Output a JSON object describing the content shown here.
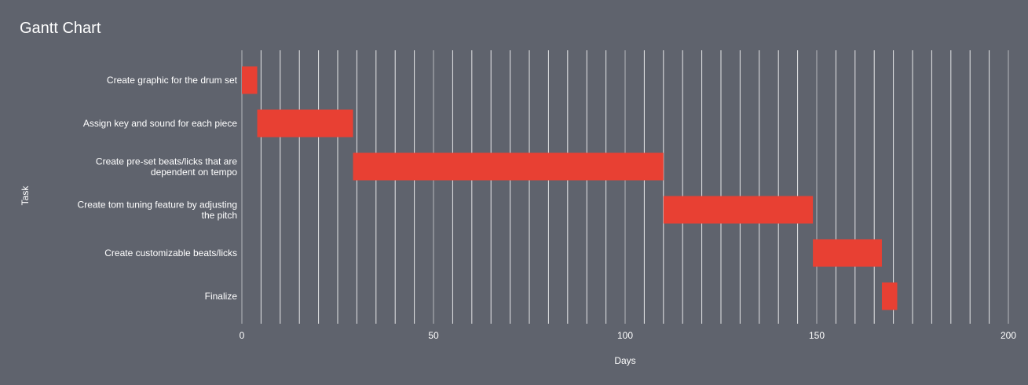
{
  "chart_data": {
    "type": "gantt",
    "title": "Gantt Chart",
    "xlabel": "Days",
    "ylabel": "Task",
    "xlim": [
      0,
      200
    ],
    "x_ticks": [
      0,
      50,
      100,
      150,
      200
    ],
    "minor_grid_step": 5,
    "grid": true,
    "bar_color": "#e84033",
    "background_color": "#5f636d",
    "tasks": [
      {
        "label": "Create graphic for the drum set",
        "start": 0,
        "end": 4
      },
      {
        "label": "Assign key and sound for each piece",
        "start": 4,
        "end": 29
      },
      {
        "label": "Create pre-set beats/licks that are dependent on tempo",
        "start": 29,
        "end": 110
      },
      {
        "label": "Create tom tuning feature by adjusting the pitch",
        "start": 110,
        "end": 149
      },
      {
        "label": "Create customizable beats/licks",
        "start": 149,
        "end": 167
      },
      {
        "label": "Finalize",
        "start": 167,
        "end": 171
      }
    ]
  }
}
